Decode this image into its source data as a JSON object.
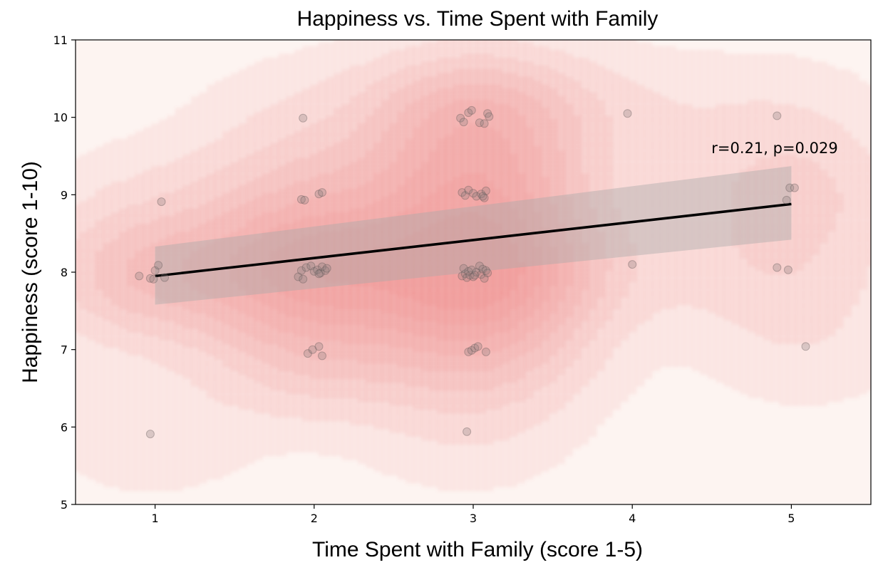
{
  "chart_data": {
    "type": "scatter",
    "title": "Happiness vs. Time Spent with Family",
    "xlabel": "Time Spent with Family (score 1-5)",
    "ylabel": "Happiness (score 1-10)",
    "xlim": [
      0.5,
      5.5
    ],
    "ylim": [
      5,
      11
    ],
    "xticks": [
      1,
      2,
      3,
      4,
      5
    ],
    "yticks": [
      5,
      6,
      7,
      8,
      9,
      10,
      11
    ],
    "grid": false,
    "annotation": "r=0.21, p=0.029",
    "colors": {
      "kde": "#e8736e",
      "points": "#8a7d7d",
      "regression_line": "#000000",
      "confidence_band": "#a9a9a9"
    },
    "regression": {
      "x_range": [
        1,
        5
      ],
      "y_at_start": 7.95,
      "y_at_end": 8.88,
      "ci_at_start": [
        7.58,
        8.33
      ],
      "ci_at_end": [
        8.42,
        9.37
      ]
    },
    "points": [
      {
        "x": 0.9,
        "y": 7.95
      },
      {
        "x": 0.97,
        "y": 7.92
      },
      {
        "x": 0.99,
        "y": 7.91
      },
      {
        "x": 1.0,
        "y": 8.02
      },
      {
        "x": 1.02,
        "y": 8.09
      },
      {
        "x": 1.06,
        "y": 7.93
      },
      {
        "x": 1.04,
        "y": 8.91
      },
      {
        "x": 0.97,
        "y": 5.91
      },
      {
        "x": 1.93,
        "y": 9.99
      },
      {
        "x": 1.92,
        "y": 8.94
      },
      {
        "x": 1.94,
        "y": 8.93
      },
      {
        "x": 2.03,
        "y": 9.01
      },
      {
        "x": 2.05,
        "y": 9.03
      },
      {
        "x": 1.9,
        "y": 7.94
      },
      {
        "x": 1.92,
        "y": 8.02
      },
      {
        "x": 1.93,
        "y": 7.91
      },
      {
        "x": 1.95,
        "y": 8.06
      },
      {
        "x": 1.98,
        "y": 8.08
      },
      {
        "x": 2.0,
        "y": 8.01
      },
      {
        "x": 2.02,
        "y": 8.03
      },
      {
        "x": 2.04,
        "y": 7.99
      },
      {
        "x": 2.05,
        "y": 8.07
      },
      {
        "x": 2.07,
        "y": 8.02
      },
      {
        "x": 2.08,
        "y": 8.05
      },
      {
        "x": 2.03,
        "y": 7.98
      },
      {
        "x": 1.96,
        "y": 6.95
      },
      {
        "x": 1.99,
        "y": 7.0
      },
      {
        "x": 2.03,
        "y": 7.04
      },
      {
        "x": 2.05,
        "y": 6.92
      },
      {
        "x": 2.92,
        "y": 9.99
      },
      {
        "x": 2.94,
        "y": 9.94
      },
      {
        "x": 2.97,
        "y": 10.06
      },
      {
        "x": 2.99,
        "y": 10.09
      },
      {
        "x": 3.04,
        "y": 9.93
      },
      {
        "x": 3.07,
        "y": 9.92
      },
      {
        "x": 3.09,
        "y": 10.05
      },
      {
        "x": 3.1,
        "y": 10.01
      },
      {
        "x": 2.93,
        "y": 9.03
      },
      {
        "x": 2.95,
        "y": 8.99
      },
      {
        "x": 2.97,
        "y": 9.06
      },
      {
        "x": 3.0,
        "y": 9.02
      },
      {
        "x": 3.02,
        "y": 8.98
      },
      {
        "x": 3.05,
        "y": 9.01
      },
      {
        "x": 3.07,
        "y": 8.96
      },
      {
        "x": 3.08,
        "y": 9.05
      },
      {
        "x": 3.06,
        "y": 8.98
      },
      {
        "x": 2.93,
        "y": 7.95
      },
      {
        "x": 2.94,
        "y": 8.05
      },
      {
        "x": 2.95,
        "y": 7.98
      },
      {
        "x": 2.96,
        "y": 7.93
      },
      {
        "x": 2.97,
        "y": 8.01
      },
      {
        "x": 2.98,
        "y": 7.96
      },
      {
        "x": 2.99,
        "y": 8.03
      },
      {
        "x": 3.0,
        "y": 7.94
      },
      {
        "x": 3.02,
        "y": 8.0
      },
      {
        "x": 3.04,
        "y": 8.08
      },
      {
        "x": 3.05,
        "y": 7.97
      },
      {
        "x": 3.06,
        "y": 8.04
      },
      {
        "x": 3.07,
        "y": 7.92
      },
      {
        "x": 3.08,
        "y": 8.02
      },
      {
        "x": 3.09,
        "y": 7.99
      },
      {
        "x": 3.01,
        "y": 7.96
      },
      {
        "x": 2.97,
        "y": 6.97
      },
      {
        "x": 2.99,
        "y": 6.99
      },
      {
        "x": 3.01,
        "y": 7.02
      },
      {
        "x": 3.03,
        "y": 7.04
      },
      {
        "x": 3.08,
        "y": 6.97
      },
      {
        "x": 2.96,
        "y": 5.94
      },
      {
        "x": 3.97,
        "y": 10.05
      },
      {
        "x": 4.0,
        "y": 8.1
      },
      {
        "x": 4.91,
        "y": 10.02
      },
      {
        "x": 4.97,
        "y": 8.93
      },
      {
        "x": 4.99,
        "y": 9.09
      },
      {
        "x": 5.02,
        "y": 9.09
      },
      {
        "x": 4.91,
        "y": 8.06
      },
      {
        "x": 4.98,
        "y": 8.03
      },
      {
        "x": 5.09,
        "y": 7.04
      }
    ]
  }
}
